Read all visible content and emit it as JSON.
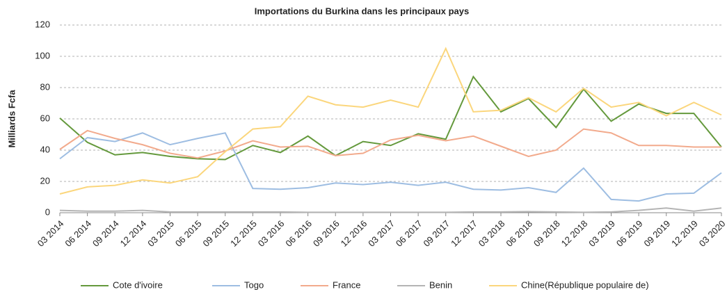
{
  "chart_data": {
    "type": "line",
    "title": "Importations du Burkina dans les principaux pays",
    "y_label": "Milliards Fcfa",
    "categories": [
      "03 2014",
      "06 2014",
      "09 2014",
      "12 2014",
      "03 2015",
      "06 2015",
      "09 2015",
      "12 2015",
      "03 2016",
      "06 2016",
      "09 2016",
      "12 2016",
      "03 2017",
      "06 2017",
      "09 2017",
      "12 2017",
      "03 2018",
      "06 2018",
      "09 2018",
      "12 2018",
      "03 2019",
      "06 2019",
      "09 2019",
      "12 2019",
      "03 2020"
    ],
    "series": [
      {
        "name": "Cote d'ivoire",
        "color": "#64993c",
        "values": [
          60.5,
          45,
          37,
          38.5,
          36,
          34.5,
          34,
          43,
          38.5,
          49,
          36.5,
          45.5,
          43,
          50.5,
          47,
          87,
          64.5,
          73,
          54.5,
          79,
          58.5,
          69.5,
          63.5,
          63.5,
          42
        ]
      },
      {
        "name": "Togo",
        "color": "#9dbde2",
        "values": [
          34.5,
          48,
          45.5,
          51,
          43.5,
          47.5,
          51,
          15.5,
          15,
          16,
          19,
          18,
          19.5,
          17.5,
          19.5,
          15,
          14.5,
          16,
          13,
          28.5,
          8.5,
          7.5,
          12,
          12.5,
          25.5
        ]
      },
      {
        "name": "France",
        "color": "#f2aa8c",
        "values": [
          40.5,
          52.5,
          47.5,
          43.5,
          38,
          35,
          39.5,
          46,
          42,
          42.5,
          36.5,
          38,
          46.5,
          49.5,
          46,
          49,
          42.5,
          36,
          40,
          53.5,
          51,
          43,
          43,
          42,
          42
        ]
      },
      {
        "name": "Benin",
        "color": "#b4b4b4",
        "values": [
          1.5,
          1,
          1,
          1.5,
          0.5,
          0.5,
          0.5,
          0.5,
          0.5,
          0.3,
          0.3,
          0.3,
          0.3,
          0.3,
          0.3,
          0.5,
          0.5,
          0.7,
          0.5,
          0.3,
          0.5,
          1.5,
          3,
          1,
          3
        ]
      },
      {
        "name": "Chine(République populaire de)",
        "color": "#fbd67c",
        "values": [
          12,
          16.5,
          17.5,
          21,
          19,
          23,
          39,
          53.5,
          55,
          74.5,
          69,
          67.5,
          72,
          67.5,
          105,
          64.5,
          65.5,
          73.5,
          64.5,
          79.5,
          67.5,
          70.5,
          62,
          70.5,
          62.5
        ]
      }
    ],
    "ylim": [
      0,
      120
    ],
    "yticks": [
      0,
      20,
      40,
      60,
      80,
      100,
      120
    ],
    "grid": true,
    "legend": "bottom"
  }
}
